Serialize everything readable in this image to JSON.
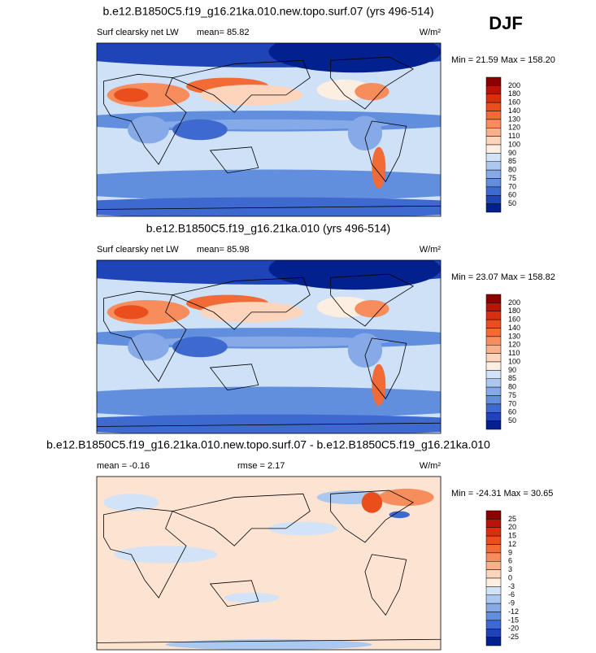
{
  "figure_title": "DJF",
  "panels": [
    {
      "title": "b.e12.B1850C5.f19_g16.21ka.010.new.topo.surf.07 (yrs 496-514)",
      "left": "Surf clearsky net LW",
      "center": "mean=  85.82",
      "units": "W/m²",
      "minmax": "Min =  21.59 Max = 158.20",
      "colorbar": {
        "levels": [
          200,
          180,
          160,
          140,
          130,
          120,
          110,
          100,
          90,
          85,
          80,
          75,
          70,
          60,
          50
        ],
        "colors": [
          "#8c0000",
          "#b81408",
          "#d8300e",
          "#ea4e1c",
          "#f26a36",
          "#f78c5c",
          "#fab08a",
          "#fdd4bc",
          "#fdeee2",
          "#d2e3f8",
          "#aac8f0",
          "#86aae8",
          "#628ede",
          "#3e6ad0",
          "#1f44b8",
          "#03208f"
        ]
      }
    },
    {
      "title": "b.e12.B1850C5.f19_g16.21ka.010 (yrs 496-514)",
      "left": "Surf clearsky net LW",
      "center": "mean=  85.98",
      "units": "W/m²",
      "minmax": "Min =  23.07 Max = 158.82",
      "colorbar": {
        "levels": [
          200,
          180,
          160,
          140,
          130,
          120,
          110,
          100,
          90,
          85,
          80,
          75,
          70,
          60,
          50
        ],
        "colors": [
          "#8c0000",
          "#b81408",
          "#d8300e",
          "#ea4e1c",
          "#f26a36",
          "#f78c5c",
          "#fab08a",
          "#fdd4bc",
          "#fdeee2",
          "#d2e3f8",
          "#aac8f0",
          "#86aae8",
          "#628ede",
          "#3e6ad0",
          "#1f44b8",
          "#03208f"
        ]
      }
    },
    {
      "title": "b.e12.B1850C5.f19_g16.21ka.010.new.topo.surf.07 - b.e12.B1850C5.f19_g16.21ka.010",
      "left": "mean =  -0.16",
      "center": "rmse =  2.17",
      "units": "W/m²",
      "minmax": "Min = -24.31 Max =  30.65",
      "colorbar": {
        "levels": [
          25,
          20,
          15,
          12,
          9,
          6,
          3,
          0,
          -3,
          -6,
          -9,
          -12,
          -15,
          -20,
          -25
        ],
        "colors": [
          "#8c0000",
          "#b81408",
          "#d8300e",
          "#ea4e1c",
          "#f26a36",
          "#f78c5c",
          "#fab08a",
          "#fdd4bc",
          "#fdeee2",
          "#d2e3f8",
          "#aac8f0",
          "#86aae8",
          "#628ede",
          "#3e6ad0",
          "#1f44b8",
          "#03208f"
        ]
      }
    }
  ]
}
